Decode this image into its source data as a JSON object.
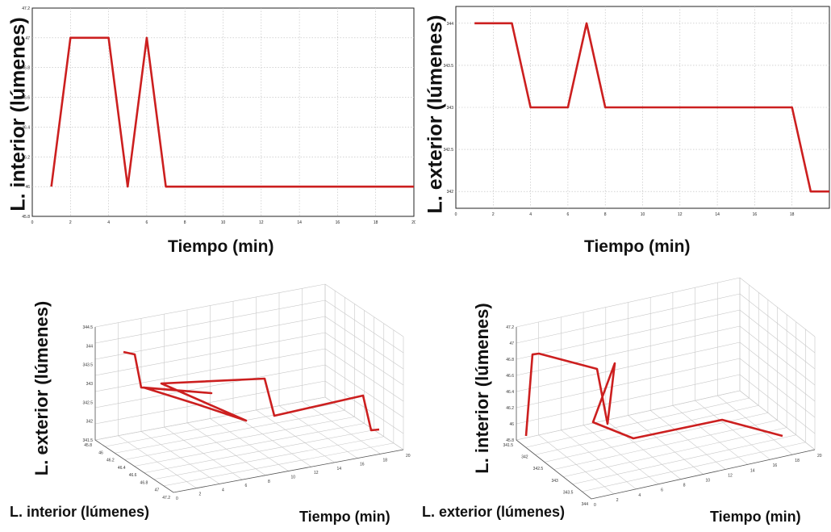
{
  "chart_data": [
    {
      "type": "line",
      "xlabel": "Tiempo (min)",
      "ylabel": "L. interior (lúmenes)",
      "xlim": [
        0,
        20
      ],
      "ylim": [
        45.8,
        47.2
      ],
      "x_ticks": [
        "0",
        "2",
        "4",
        "6",
        "8",
        "10",
        "12",
        "14",
        "16",
        "18",
        "20"
      ],
      "y_ticks": [
        "45.8",
        "46",
        "46.2",
        "46.4",
        "46.6",
        "46.8",
        "47",
        "47.2"
      ],
      "grid": true,
      "color": "#cc1f1f",
      "x": [
        1,
        2,
        4,
        5,
        6,
        7,
        20
      ],
      "y": [
        46,
        47,
        47,
        46,
        47,
        46,
        46
      ]
    },
    {
      "type": "line",
      "xlabel": "Tiempo (min)",
      "ylabel": "L. exterior (lúmenes)",
      "xlim": [
        0,
        20
      ],
      "ylim": [
        341.8,
        344.2
      ],
      "x_ticks": [
        "0",
        "2",
        "4",
        "6",
        "8",
        "10",
        "12",
        "14",
        "16",
        "18"
      ],
      "y_ticks": [
        "342",
        "342.5",
        "343",
        "343.5",
        "344"
      ],
      "grid": true,
      "color": "#cc1f1f",
      "x": [
        1,
        3,
        4,
        6,
        7,
        8,
        18,
        19,
        20
      ],
      "y": [
        344,
        344,
        343,
        343,
        344,
        343,
        343,
        342,
        342
      ]
    },
    {
      "type": "line3d",
      "xlabel": "L. interior (lúmenes)",
      "ylabel": "Tiempo (min)",
      "zlabel": "L. exterior (lúmenes)",
      "z_ticks": [
        "341.5",
        "342",
        "342.5",
        "343",
        "343.5",
        "344",
        "344.5"
      ],
      "x_ticks": [
        "45.8",
        "46",
        "46.2",
        "46.4",
        "46.6",
        "46.8",
        "47",
        "47.2"
      ],
      "y_ticks": [
        "0",
        "2",
        "4",
        "6",
        "8",
        "10",
        "12",
        "14",
        "16",
        "18",
        "20"
      ],
      "grid": true,
      "color": "#cc1f1f"
    },
    {
      "type": "line3d",
      "xlabel": "L. exterior (lúmenes)",
      "ylabel": "Tiempo (min)",
      "zlabel": "L. interior (lúmenes)",
      "z_ticks": [
        "45.8",
        "46",
        "46.2",
        "46.4",
        "46.6",
        "46.8",
        "47",
        "47.2"
      ],
      "x_ticks": [
        "341.5",
        "342",
        "342.5",
        "343",
        "343.5",
        "344"
      ],
      "y_ticks": [
        "0",
        "2",
        "4",
        "6",
        "8",
        "10",
        "12",
        "14",
        "16",
        "18",
        "20"
      ],
      "grid": true,
      "color": "#cc1f1f"
    }
  ]
}
